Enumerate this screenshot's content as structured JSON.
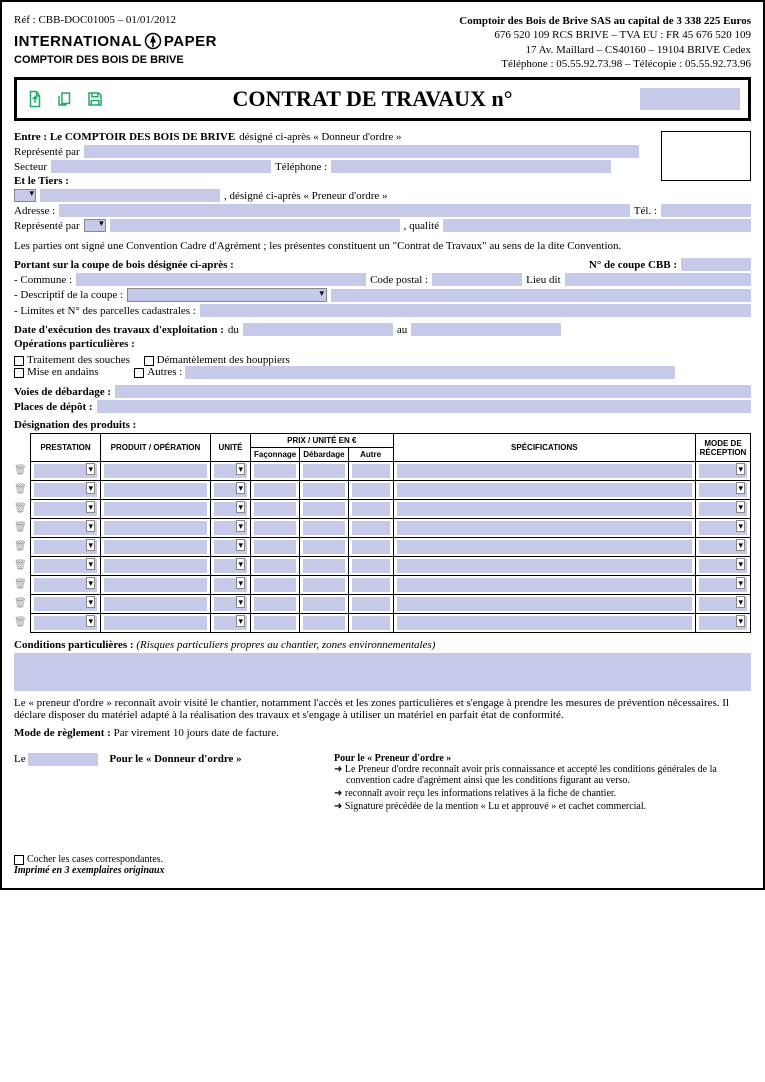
{
  "ref": "Réf : CBB-DOC01005 – 01/01/2012",
  "brand_left": "INTERNATIONAL",
  "brand_right": "PAPER",
  "brand_sub": "COMPTOIR DES BOIS DE BRIVE",
  "hdr_company": "Comptoir des Bois de Brive SAS au capital de 3 338 225 Euros",
  "hdr_rcs": "676 520 109 RCS BRIVE – TVA EU : FR 45 676 520 109",
  "hdr_addr": "17 Av. Maillard – CS40160 – 19104 BRIVE Cedex",
  "hdr_tel": "Téléphone : 05.55.92.73.98 – Télécopie : 05.55.92.73.96",
  "title": "CONTRAT DE TRAVAUX  n°",
  "entre": "Entre : Le COMPTOIR DES BOIS DE BRIVE",
  "entre_suffix": " désigné ci-après « Donneur d'ordre »",
  "repres": "Représenté par",
  "secteur": "Secteur",
  "telephone": "Téléphone :",
  "tiers": "Et le Tiers :",
  "tiers_suffix": ", désigné ci-après « Preneur d'ordre »",
  "adresse": "Adresse :",
  "tel": "Tél. :",
  "qualite": ", qualité",
  "convention": "Les parties ont signé une Convention Cadre d'Agrément ; les présentes constituent un \"Contrat de Travaux\" au sens de la dite Convention.",
  "portant": "Portant sur la coupe de bois désignée ci-après :",
  "coupe_cbb": "N° de coupe CBB :",
  "commune": "- Commune :",
  "code_postal": "Code postal :",
  "lieu_dit": "Lieu dit",
  "descriptif": "- Descriptif de la coupe :",
  "limites": "- Limites et N° des parcelles cadastrales :",
  "date_exec": "Date d'exécution des travaux d'exploitation :",
  "du": "du",
  "au": "au",
  "operations": "Opérations particulières :",
  "op1": "Traitement des souches",
  "op2": "Démantèlement des houppiers",
  "op3": "Mise en andains",
  "op4": "Autres :",
  "voies": "Voies de débardage :",
  "places": "Places de dépôt :",
  "designation": "Désignation des produits :",
  "th_prestation": "PRESTATION",
  "th_produit": "PRODUIT / OPÉRATION",
  "th_unite": "UNITÉ",
  "th_prix": "PRIX / UNITÉ EN €",
  "th_fac": "Façonnage",
  "th_deb": "Débardage",
  "th_autre": "Autre",
  "th_spec": "SPÉCIFICATIONS",
  "th_mode": "MODE DE RÉCEPTION",
  "conditions": "Conditions particulières :",
  "conditions_hint": "(Risques particuliers propres au chantier, zones environnementales)",
  "preneur_text": "Le « preneur d'ordre » reconnaît avoir visité le chantier, notamment l'accès et les zones particulières et s'engage à prendre les mesures de prévention nécessaires. Il déclare disposer du matériel adapté à la réalisation des travaux et s'engage à utiliser un matériel en parfait état de conformité.",
  "mode_reglement": "Mode de règlement :",
  "mode_reglement_val": "Par virement 10 jours date de facture.",
  "sig_le": "Le",
  "sig_donneur": "Pour le « Donneur d'ordre »",
  "sig_preneur": "Pour le « Preneur d'ordre »",
  "b1": "Le Preneur d'ordre reconnaît avoir pris connaissance et accepté les conditions générales de la convention cadre d'agrément ainsi que les conditions figurant au verso.",
  "b2": "reconnaît avoir reçu les informations relatives à la fiche de chantier.",
  "b3": "Signature précédée de la mention « Lu et approuvé » et cachet commercial.",
  "cocher": "Cocher les cases correspondantes.",
  "imprime": "Imprimé en 3 exemplaires originaux",
  "row_count": 9
}
